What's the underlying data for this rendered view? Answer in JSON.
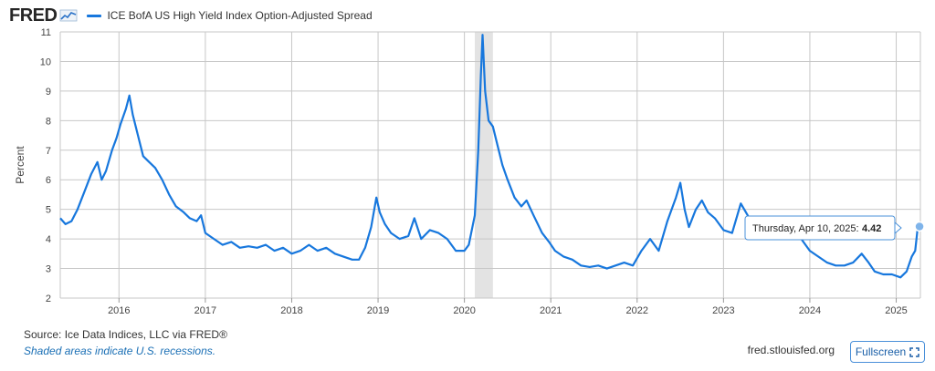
{
  "header": {
    "logo_text": "FRED",
    "logo_icon": "chart-line-icon",
    "series_label": "ICE BofA US High Yield Index Option-Adjusted Spread"
  },
  "footer": {
    "source": "Source: Ice Data Indices, LLC via FRED®",
    "recession_note": "Shaded areas indicate U.S. recessions.",
    "site": "fred.stlouisfed.org",
    "fullscreen_label": "Fullscreen"
  },
  "colors": {
    "line": "#1777dd",
    "recession": "#d9d9d9",
    "grid": "#c7c7c7",
    "accent": "#4a90d9"
  },
  "tooltip": {
    "date": "Thursday, Apr 10, 2025:",
    "value": "4.42"
  },
  "chart_data": {
    "type": "line",
    "title": "ICE BofA US High Yield Index Option-Adjusted Spread",
    "xlabel": "",
    "ylabel": "Percent",
    "xlim": [
      2015.32,
      2025.28
    ],
    "ylim": [
      2,
      11
    ],
    "yticks": [
      "2",
      "3",
      "4",
      "5",
      "6",
      "7",
      "8",
      "9",
      "10",
      "11"
    ],
    "xticks": [
      {
        "label": "2016",
        "x": 2016.0
      },
      {
        "label": "2017",
        "x": 2017.0
      },
      {
        "label": "2018",
        "x": 2018.0
      },
      {
        "label": "2019",
        "x": 2019.0
      },
      {
        "label": "2020",
        "x": 2020.0
      },
      {
        "label": "2021",
        "x": 2021.0
      },
      {
        "label": "2022",
        "x": 2022.0
      },
      {
        "label": "2023",
        "x": 2023.0
      },
      {
        "label": "2024",
        "x": 2024.0
      },
      {
        "label": "2025",
        "x": 2025.0
      }
    ],
    "grid": true,
    "legend": "top-left",
    "recessions": [
      [
        2020.12,
        2020.33
      ]
    ],
    "series": [
      {
        "name": "ICE BofA US High Yield Index Option-Adjusted Spread",
        "points": [
          [
            2015.32,
            4.7
          ],
          [
            2015.38,
            4.5
          ],
          [
            2015.45,
            4.6
          ],
          [
            2015.52,
            5.0
          ],
          [
            2015.6,
            5.6
          ],
          [
            2015.68,
            6.2
          ],
          [
            2015.75,
            6.6
          ],
          [
            2015.8,
            6.0
          ],
          [
            2015.85,
            6.3
          ],
          [
            2015.92,
            7.0
          ],
          [
            2015.97,
            7.4
          ],
          [
            2016.02,
            7.9
          ],
          [
            2016.08,
            8.4
          ],
          [
            2016.12,
            8.85
          ],
          [
            2016.16,
            8.2
          ],
          [
            2016.22,
            7.5
          ],
          [
            2016.28,
            6.8
          ],
          [
            2016.35,
            6.6
          ],
          [
            2016.42,
            6.4
          ],
          [
            2016.5,
            6.0
          ],
          [
            2016.58,
            5.5
          ],
          [
            2016.66,
            5.1
          ],
          [
            2016.75,
            4.9
          ],
          [
            2016.82,
            4.7
          ],
          [
            2016.9,
            4.6
          ],
          [
            2016.95,
            4.8
          ],
          [
            2017.0,
            4.2
          ],
          [
            2017.1,
            4.0
          ],
          [
            2017.2,
            3.8
          ],
          [
            2017.3,
            3.9
          ],
          [
            2017.4,
            3.7
          ],
          [
            2017.5,
            3.75
          ],
          [
            2017.6,
            3.7
          ],
          [
            2017.7,
            3.8
          ],
          [
            2017.8,
            3.6
          ],
          [
            2017.9,
            3.7
          ],
          [
            2018.0,
            3.5
          ],
          [
            2018.1,
            3.6
          ],
          [
            2018.2,
            3.8
          ],
          [
            2018.3,
            3.6
          ],
          [
            2018.4,
            3.7
          ],
          [
            2018.5,
            3.5
          ],
          [
            2018.6,
            3.4
          ],
          [
            2018.7,
            3.3
          ],
          [
            2018.78,
            3.3
          ],
          [
            2018.85,
            3.7
          ],
          [
            2018.92,
            4.4
          ],
          [
            2018.98,
            5.4
          ],
          [
            2019.02,
            4.9
          ],
          [
            2019.08,
            4.5
          ],
          [
            2019.15,
            4.2
          ],
          [
            2019.25,
            4.0
          ],
          [
            2019.35,
            4.1
          ],
          [
            2019.42,
            4.7
          ],
          [
            2019.5,
            4.0
          ],
          [
            2019.6,
            4.3
          ],
          [
            2019.7,
            4.2
          ],
          [
            2019.8,
            4.0
          ],
          [
            2019.9,
            3.6
          ],
          [
            2020.0,
            3.6
          ],
          [
            2020.05,
            3.8
          ],
          [
            2020.12,
            4.8
          ],
          [
            2020.16,
            7.0
          ],
          [
            2020.19,
            9.5
          ],
          [
            2020.21,
            10.9
          ],
          [
            2020.24,
            9.0
          ],
          [
            2020.28,
            8.0
          ],
          [
            2020.33,
            7.8
          ],
          [
            2020.38,
            7.2
          ],
          [
            2020.44,
            6.5
          ],
          [
            2020.5,
            6.0
          ],
          [
            2020.58,
            5.4
          ],
          [
            2020.66,
            5.1
          ],
          [
            2020.72,
            5.3
          ],
          [
            2020.8,
            4.8
          ],
          [
            2020.9,
            4.2
          ],
          [
            2020.98,
            3.9
          ],
          [
            2021.05,
            3.6
          ],
          [
            2021.15,
            3.4
          ],
          [
            2021.25,
            3.3
          ],
          [
            2021.35,
            3.1
          ],
          [
            2021.45,
            3.05
          ],
          [
            2021.55,
            3.1
          ],
          [
            2021.65,
            3.0
          ],
          [
            2021.75,
            3.1
          ],
          [
            2021.85,
            3.2
          ],
          [
            2021.95,
            3.1
          ],
          [
            2022.05,
            3.6
          ],
          [
            2022.15,
            4.0
          ],
          [
            2022.25,
            3.6
          ],
          [
            2022.35,
            4.6
          ],
          [
            2022.45,
            5.4
          ],
          [
            2022.5,
            5.9
          ],
          [
            2022.55,
            5.0
          ],
          [
            2022.6,
            4.4
          ],
          [
            2022.68,
            5.0
          ],
          [
            2022.75,
            5.3
          ],
          [
            2022.82,
            4.9
          ],
          [
            2022.9,
            4.7
          ],
          [
            2023.0,
            4.3
          ],
          [
            2023.1,
            4.2
          ],
          [
            2023.2,
            5.2
          ],
          [
            2023.3,
            4.7
          ],
          [
            2023.4,
            4.4
          ],
          [
            2023.5,
            4.0
          ],
          [
            2023.6,
            4.1
          ],
          [
            2023.7,
            4.0
          ],
          [
            2023.8,
            4.5
          ],
          [
            2023.9,
            4.0
          ],
          [
            2024.0,
            3.6
          ],
          [
            2024.1,
            3.4
          ],
          [
            2024.2,
            3.2
          ],
          [
            2024.3,
            3.1
          ],
          [
            2024.4,
            3.1
          ],
          [
            2024.5,
            3.2
          ],
          [
            2024.6,
            3.5
          ],
          [
            2024.68,
            3.2
          ],
          [
            2024.75,
            2.9
          ],
          [
            2024.85,
            2.8
          ],
          [
            2024.95,
            2.8
          ],
          [
            2025.05,
            2.7
          ],
          [
            2025.12,
            2.9
          ],
          [
            2025.18,
            3.4
          ],
          [
            2025.22,
            3.6
          ],
          [
            2025.25,
            4.42
          ],
          [
            2025.27,
            4.42
          ]
        ]
      }
    ]
  }
}
